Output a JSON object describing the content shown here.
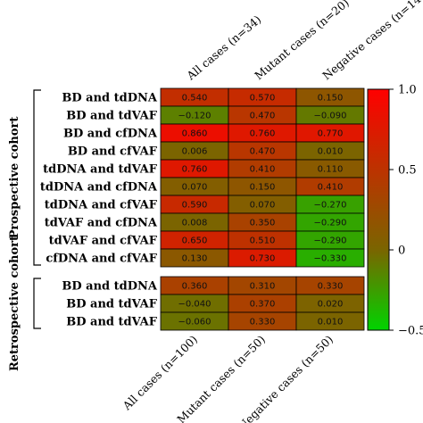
{
  "chart_data": {
    "type": "heatmap",
    "title": "",
    "colorscale": {
      "min": -0.5,
      "mid": 0,
      "max": 1.0,
      "low_color": "#00d400",
      "mid_color": "#7a6500",
      "high_color": "#ff0000"
    },
    "colorbar_ticks": [
      "1.0",
      "0.5",
      "0",
      "−0.5"
    ],
    "colorbar_tick_values": [
      1.0,
      0.5,
      0,
      -0.5
    ],
    "groups": [
      {
        "name": "Prospective cohort",
        "columns": [
          "All cases (n=34)",
          "Mutant cases (n=20)",
          "Negative cases (n=14)"
        ],
        "rows": [
          "BD and tdDNA",
          "BD and tdVAF",
          "BD and cfDNA",
          "BD and cfVAF",
          "tdDNA and tdVAF",
          "tdDNA and cfDNA",
          "tdDNA and cfVAF",
          "tdVAF and cfDNA",
          "tdVAF and cfVAF",
          "cfDNA and cfVAF"
        ],
        "values": [
          [
            0.54,
            0.57,
            0.15
          ],
          [
            -0.12,
            0.47,
            -0.09
          ],
          [
            0.86,
            0.76,
            0.77
          ],
          [
            0.006,
            0.47,
            0.01
          ],
          [
            0.76,
            0.41,
            0.11
          ],
          [
            0.07,
            0.15,
            0.41
          ],
          [
            0.59,
            0.07,
            -0.27
          ],
          [
            0.008,
            0.35,
            -0.29
          ],
          [
            0.65,
            0.51,
            -0.29
          ],
          [
            0.13,
            0.73,
            -0.33
          ]
        ],
        "labels": [
          [
            "0.540",
            "0.570",
            "0.150"
          ],
          [
            "−0.120",
            "0.470",
            "−0.090"
          ],
          [
            "0.860",
            "0.760",
            "0.770"
          ],
          [
            "0.006",
            "0.470",
            "0.010"
          ],
          [
            "0.760",
            "0.410",
            "0.110"
          ],
          [
            "0.070",
            "0.150",
            "0.410"
          ],
          [
            "0.590",
            "0.070",
            "−0.270"
          ],
          [
            "0.008",
            "0.350",
            "−0.290"
          ],
          [
            "0.650",
            "0.510",
            "−0.290"
          ],
          [
            "0.130",
            "0.730",
            "−0.330"
          ]
        ]
      },
      {
        "name": "Retrospective cohort",
        "columns": [
          "All cases (n=100)",
          "Mutant cases (n=50)",
          "Negative cases (n=50)"
        ],
        "rows": [
          "BD and tdDNA",
          "BD and tdVAF",
          "BD and tdVAF"
        ],
        "values": [
          [
            0.36,
            0.31,
            0.33
          ],
          [
            -0.04,
            0.37,
            0.02
          ],
          [
            -0.06,
            0.33,
            0.01
          ]
        ],
        "labels": [
          [
            "0.360",
            "0.310",
            "0.330"
          ],
          [
            "−0.040",
            "0.370",
            "0.020"
          ],
          [
            "−0.060",
            "0.330",
            "0.010"
          ]
        ]
      }
    ]
  }
}
